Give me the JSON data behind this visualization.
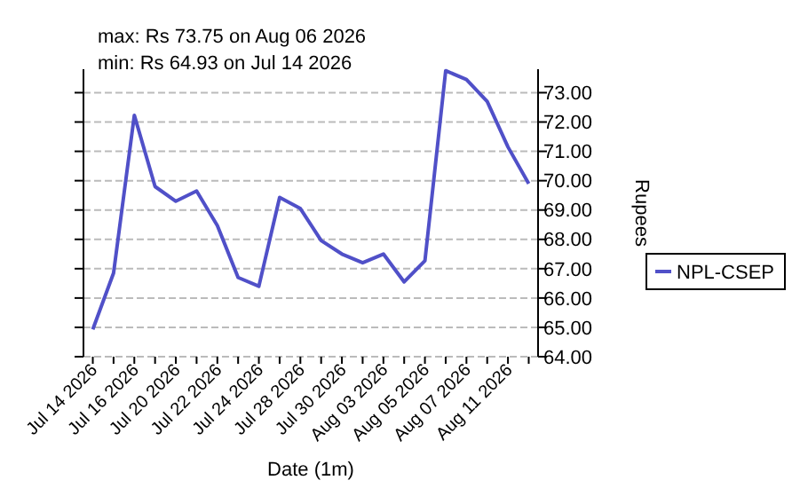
{
  "chart_data": {
    "type": "line",
    "title": "max: Rs 73.75 on Aug 06 2026",
    "subtitle": "min: Rs 64.93 on Jul 14 2026",
    "xlabel": "Date (1m)",
    "ylabel": "Rupees",
    "categories": [
      "Jul 14 2026",
      null,
      "Jul 16 2026",
      null,
      "Jul 20 2026",
      null,
      "Jul 22 2026",
      null,
      "Jul 24 2026",
      null,
      "Jul 28 2026",
      null,
      "Jul 30 2026",
      null,
      "Aug 03 2026",
      null,
      "Aug 05 2026",
      null,
      "Aug 07 2026",
      null,
      "Aug 11 2026",
      null
    ],
    "series": [
      {
        "name": "NPL-CSEP",
        "color": "#5050c8",
        "values": [
          64.93,
          66.85,
          72.23,
          69.8,
          69.3,
          69.65,
          68.47,
          66.7,
          66.4,
          69.43,
          69.05,
          67.96,
          67.5,
          67.2,
          67.5,
          66.55,
          67.27,
          73.75,
          73.45,
          72.7,
          71.15,
          69.9
        ]
      }
    ],
    "ylim": [
      64,
      73.8
    ],
    "yticks": [
      {
        "value": 64,
        "label": "64.00"
      },
      {
        "value": 65,
        "label": "65.00"
      },
      {
        "value": 66,
        "label": "66.00"
      },
      {
        "value": 67,
        "label": "67.00"
      },
      {
        "value": 68,
        "label": "68.00"
      },
      {
        "value": 69,
        "label": "69.00"
      },
      {
        "value": 70,
        "label": "70.00"
      },
      {
        "value": 71,
        "label": "71.00"
      },
      {
        "value": 72,
        "label": "72.00"
      },
      {
        "value": 73,
        "label": "73.00"
      }
    ],
    "grid": "y",
    "legend": "right",
    "marker": "none",
    "line_style": "solid"
  }
}
